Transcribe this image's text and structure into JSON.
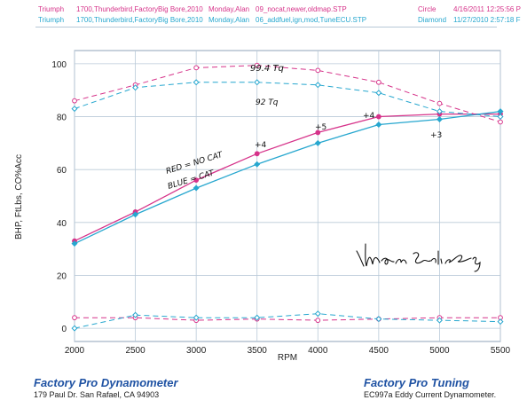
{
  "header": {
    "rows": [
      {
        "color": "#d6338a",
        "run": "Triumph",
        "description": "1700,Thunderbird,FactoryBig Bore,2010",
        "day": "Monday,Alan",
        "file": "09_nocat,newer,oldmap.STP",
        "marker": "Circle",
        "datetime": "4/16/2011 12:25:56 P"
      },
      {
        "color": "#27a7cf",
        "run": "Triumph",
        "description": "1700,Thunderbird,FactoryBig Bore,2010",
        "day": "Monday,Alan",
        "file": "06_addfuel,ign,mod,TuneECU.STP",
        "marker": "Diamond",
        "datetime": "11/27/2010 2:57:18 F"
      }
    ]
  },
  "chart_data": {
    "type": "line",
    "xlabel": "RPM",
    "ylabel": "BHP, FtLbs, CO%Acc",
    "x": [
      2000,
      2500,
      3000,
      3500,
      4000,
      4500,
      5000,
      5500
    ],
    "xlim": [
      2000,
      5500
    ],
    "ylim": [
      -5,
      105
    ],
    "yticks": [
      0,
      20,
      40,
      60,
      80,
      100
    ],
    "grid": true,
    "series": [
      {
        "color": "#d6338a",
        "style": "solid",
        "marker": "circle",
        "values": [
          33,
          44,
          56,
          66,
          74,
          80,
          81,
          81
        ]
      },
      {
        "color": "#27a7cf",
        "style": "solid",
        "marker": "diamond",
        "values": [
          32,
          43,
          53,
          62,
          70,
          77,
          79,
          82
        ]
      },
      {
        "color": "#d6338a",
        "style": "dashed",
        "marker": "circle",
        "values": [
          86,
          92,
          98.5,
          99.4,
          97.5,
          93,
          85,
          78
        ]
      },
      {
        "color": "#27a7cf",
        "style": "dashed",
        "marker": "diamond",
        "values": [
          83,
          91,
          93,
          93,
          92,
          89,
          82,
          80
        ]
      },
      {
        "color": "#d6338a",
        "style": "dashed",
        "marker": "circle",
        "values": [
          4,
          4,
          3,
          3.5,
          3,
          3.5,
          4,
          4
        ]
      },
      {
        "color": "#27a7cf",
        "style": "dashed",
        "marker": "diamond",
        "values": [
          0,
          5,
          4,
          4,
          5.5,
          3.5,
          3,
          2.5
        ]
      }
    ],
    "annotations": [
      {
        "text": "99.4 Tq"
      },
      {
        "text": "92 Tq"
      },
      {
        "text": "RED = NO CAT"
      },
      {
        "text": "BLUE = CAT"
      },
      {
        "text": "+4"
      },
      {
        "text": "+5"
      },
      {
        "text": "+4"
      },
      {
        "text": "+3"
      }
    ],
    "signature": "Mark Salisberg"
  },
  "footer": {
    "left_title": "Factory Pro Dynamometer",
    "left_address": "179 Paul Dr.  San Rafael, CA 94903",
    "right_title": "Factory Pro Tuning",
    "right_model": "EC997a  Eddy Current Dynamometer."
  }
}
